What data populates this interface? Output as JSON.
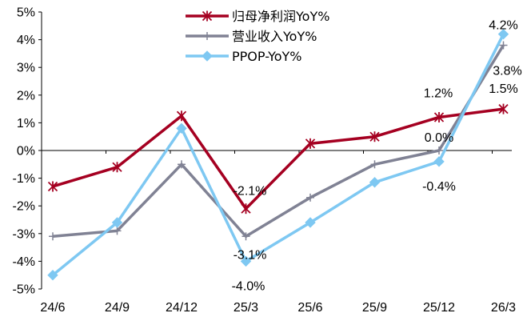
{
  "chart_data": {
    "type": "line",
    "categories": [
      "24/6",
      "24/9",
      "24/12",
      "25/3",
      "25/6",
      "25/9",
      "25/12",
      "26/3"
    ],
    "ylim": [
      -5,
      5
    ],
    "yticks": [
      -5,
      -4,
      -3,
      -2,
      -1,
      0,
      1,
      2,
      3,
      4,
      5
    ],
    "ytick_labels": [
      "-5%",
      "-4%",
      "-3%",
      "-2%",
      "-1%",
      "0%",
      "1%",
      "2%",
      "3%",
      "4%",
      "5%"
    ],
    "grid": false,
    "legend_position": "top-center",
    "series": [
      {
        "name": "归母净利润YoY%",
        "color": "#A50021",
        "marker": "asterisk",
        "values": [
          -1.3,
          -0.6,
          1.25,
          -2.1,
          0.25,
          0.5,
          1.2,
          1.5
        ]
      },
      {
        "name": "营业收入YoY%",
        "color": "#808294",
        "marker": "plus",
        "values": [
          -3.1,
          -2.9,
          -0.5,
          -3.1,
          -1.7,
          -0.5,
          0.0,
          3.8
        ]
      },
      {
        "name": "PPOP-YoY%",
        "color": "#7EC8F2",
        "marker": "diamond",
        "values": [
          -4.5,
          -2.6,
          0.8,
          -4.0,
          -2.6,
          -1.15,
          -0.4,
          4.2
        ]
      }
    ],
    "annotations": [
      {
        "text": "-2.1%",
        "series": 0,
        "index": 3
      },
      {
        "text": "1.2%",
        "series": 0,
        "index": 6
      },
      {
        "text": "1.5%",
        "series": 0,
        "index": 7
      },
      {
        "text": "-3.1%",
        "series": 1,
        "index": 3
      },
      {
        "text": "0.0%",
        "series": 1,
        "index": 6
      },
      {
        "text": "3.8%",
        "series": 1,
        "index": 7
      },
      {
        "text": "-4.0%",
        "series": 2,
        "index": 3
      },
      {
        "text": "-0.4%",
        "series": 2,
        "index": 6
      },
      {
        "text": "4.2%",
        "series": 2,
        "index": 7
      }
    ]
  }
}
